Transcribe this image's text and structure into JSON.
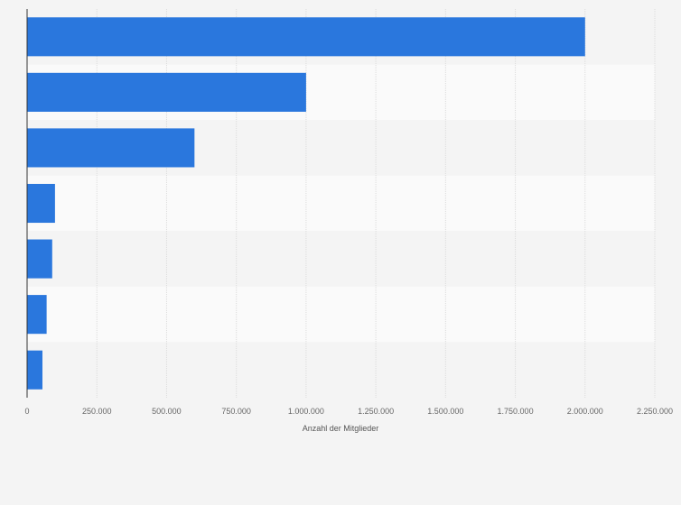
{
  "chart_data": {
    "type": "bar",
    "orientation": "horizontal",
    "categories": [
      "",
      "",
      "",
      "",
      "",
      "",
      ""
    ],
    "values": [
      2000000,
      1000000,
      600000,
      100000,
      90000,
      70000,
      55000
    ],
    "xlabel": "Anzahl der Mitglieder",
    "xlim": [
      0,
      2250000
    ],
    "x_ticks": [
      0,
      250000,
      500000,
      750000,
      1000000,
      1250000,
      1500000,
      1750000,
      2000000,
      2250000
    ],
    "x_tick_labels": [
      "0",
      "250.000",
      "500.000",
      "750.000",
      "1.000.000",
      "1.250.000",
      "1.500.000",
      "1.750.000",
      "2.000.000",
      "2.250.000"
    ],
    "grid": true,
    "bar_color": "#2a77dd",
    "band_colors": [
      "#f4f4f4",
      "#fafafa"
    ]
  }
}
